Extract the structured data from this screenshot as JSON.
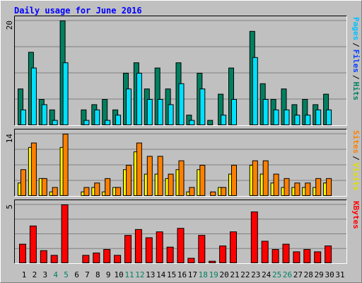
{
  "chart_data": [
    {
      "type": "bar",
      "title": "Daily usage for June 2016",
      "series": [
        {
          "name": "Hits",
          "color": "#008060",
          "values": [
            7,
            14,
            5,
            3,
            20,
            0,
            3,
            4,
            5,
            3,
            10,
            12,
            7,
            11,
            7,
            12,
            2,
            10,
            1,
            6,
            11,
            0,
            18,
            8,
            5,
            7,
            4,
            5,
            4,
            6,
            0
          ]
        },
        {
          "name": "Pages",
          "color": "#00e0ff",
          "values": [
            3,
            11,
            4,
            1,
            12,
            0,
            1,
            3,
            1,
            2,
            7,
            10,
            5,
            5,
            4,
            8,
            1,
            7,
            0,
            2,
            5,
            0,
            13,
            5,
            3,
            3,
            2,
            2,
            3,
            3,
            0
          ]
        }
      ],
      "legend": [
        {
          "text": "Pages",
          "color": "#00c0ff"
        },
        {
          "text": "Files",
          "color": "#0040ff"
        },
        {
          "text": "Hits",
          "color": "#008060"
        }
      ],
      "legend_separator": "/",
      "ylim": [
        0,
        20
      ],
      "yticks": [
        20
      ],
      "gridlines": [
        5,
        10,
        15
      ]
    },
    {
      "type": "bar",
      "series": [
        {
          "name": "Visits",
          "color": "#ffff00",
          "values": [
            3,
            11,
            4,
            1,
            11,
            0,
            1,
            2,
            1,
            2,
            6,
            10,
            5,
            5,
            4,
            6,
            1,
            6,
            0,
            2,
            5,
            0,
            7,
            5,
            3,
            2,
            2,
            2,
            2,
            3,
            0
          ]
        },
        {
          "name": "Sites",
          "color": "#ff8000",
          "values": [
            6,
            12,
            4,
            2,
            14,
            0,
            2,
            3,
            4,
            2,
            7,
            12,
            9,
            9,
            5,
            8,
            2,
            7,
            1,
            2,
            7,
            0,
            8,
            8,
            5,
            4,
            3,
            3,
            4,
            4,
            0
          ]
        }
      ],
      "legend": [
        {
          "text": "Sites",
          "color": "#ff8000"
        },
        {
          "text": "Visits",
          "color": "#e0e000"
        }
      ],
      "legend_separator": "/",
      "ylim": [
        0,
        14
      ],
      "yticks": [
        14
      ],
      "gridlines": [
        3.5,
        7,
        10.5
      ]
    },
    {
      "type": "bar",
      "series": [
        {
          "name": "KBytes",
          "color": "#ff0000",
          "values": [
            1.65,
            3.2,
            1.1,
            0.7,
            5,
            0,
            0.7,
            0.9,
            1.2,
            0.7,
            2.4,
            2.9,
            2.2,
            2.7,
            1.4,
            3.0,
            0.45,
            2.4,
            0.2,
            1.5,
            2.7,
            0,
            4.4,
            1.9,
            1.2,
            1.65,
            1.0,
            1.2,
            1.0,
            1.5,
            0
          ]
        }
      ],
      "legend": [
        {
          "text": "KBytes",
          "color": "#ff0000"
        }
      ],
      "ylim": [
        0,
        5
      ],
      "yticks": [
        5
      ],
      "gridlines": [
        1.25,
        2.5,
        3.75
      ],
      "categories": [
        "1",
        "2",
        "3",
        "4",
        "5",
        "6",
        "7",
        "8",
        "9",
        "10",
        "11",
        "12",
        "13",
        "14",
        "15",
        "16",
        "17",
        "18",
        "19",
        "20",
        "21",
        "22",
        "23",
        "24",
        "25",
        "26",
        "27",
        "28",
        "29",
        "30",
        "31"
      ],
      "weekend": [
        false,
        false,
        false,
        true,
        true,
        false,
        false,
        false,
        false,
        false,
        true,
        true,
        false,
        false,
        false,
        false,
        false,
        true,
        true,
        false,
        false,
        false,
        false,
        false,
        true,
        true,
        false,
        false,
        false,
        false,
        false
      ],
      "weekend_color": "#008060"
    }
  ]
}
